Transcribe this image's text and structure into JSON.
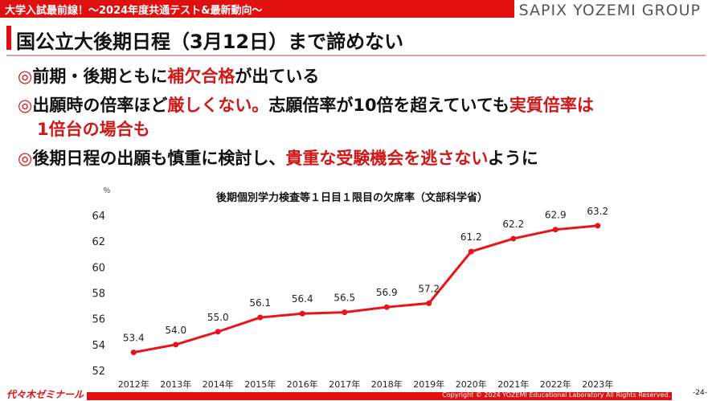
{
  "header": {
    "banner": "大学入試最前線！～2024年度共通テスト&最新動向～",
    "brand": "SAPIX YOZEMI GROUP"
  },
  "slide": {
    "title": "国公立大後期日程（3月12日）まで諦めない",
    "bullet_mark": "◎",
    "bullets": {
      "b1": {
        "t1": "前期・後期ともに",
        "r1": "補欠合格",
        "t2": "が出ている"
      },
      "b2": {
        "t1": "出願時の倍率ほど",
        "r1": "厳しくない。",
        "t2": "志願倍率が10倍を超えていても",
        "r2": "実質倍率は"
      },
      "b3": {
        "r1": "1倍台の場合も"
      },
      "b4": {
        "t1": "後期日程の出願も慎重に検討し、",
        "r1": "貴重な受験機会を逃さない",
        "t2": "ように"
      }
    }
  },
  "chart_data": {
    "type": "line",
    "title": "後期個別学力検査等１日目１限目の欠席率（文部科学省）",
    "unit_label": "％",
    "xlabel": "",
    "ylabel": "",
    "categories": [
      "2012年",
      "2013年",
      "2014年",
      "2015年",
      "2016年",
      "2017年",
      "2018年",
      "2019年",
      "2020年",
      "2021年",
      "2022年",
      "2023年"
    ],
    "values": [
      53.4,
      54.0,
      55.0,
      56.1,
      56.4,
      56.5,
      56.9,
      57.2,
      61.2,
      62.2,
      62.9,
      63.2
    ],
    "data_labels": [
      "53.4",
      "54.0",
      "55.0",
      "56.1",
      "56.4",
      "56.5",
      "56.9",
      "57.2",
      "61.2",
      "62.2",
      "62.9",
      "63.2"
    ],
    "ylim": [
      52,
      64
    ],
    "yticks": [
      52,
      54,
      56,
      58,
      60,
      62,
      64
    ],
    "grid": false,
    "legend": "none",
    "line_color": "#e8131b"
  },
  "footer": {
    "logo": "代々木ゼミナール",
    "copyright": "Copyright © 2024 YOZEMI Educational Laboratory All Rights Reserved.",
    "page": "-24-"
  }
}
